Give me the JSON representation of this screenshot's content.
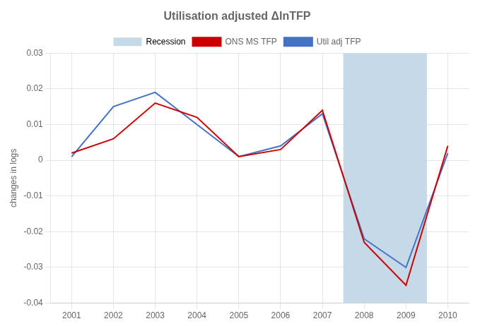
{
  "chart_data": {
    "type": "line",
    "title": "Utilisation adjusted ΔlnTFP",
    "ylabel": "changes in logs",
    "x": [
      2001,
      2002,
      2003,
      2004,
      2005,
      2006,
      2007,
      2008,
      2009,
      2010
    ],
    "series": [
      {
        "name": "ONS MS TFP",
        "color": "#cc0000",
        "values": [
          0.002,
          0.006,
          0.016,
          0.012,
          0.001,
          0.003,
          0.014,
          -0.023,
          -0.035,
          0.004
        ]
      },
      {
        "name": "Util adj TFP",
        "color": "#4472c4",
        "values": [
          0.001,
          0.015,
          0.019,
          0.01,
          0.001,
          0.004,
          0.013,
          -0.022,
          -0.03,
          0.002
        ]
      }
    ],
    "shaded_regions": [
      {
        "name": "Recession",
        "start": 2007.5,
        "end": 2009.5,
        "color": "#c5d9e8"
      }
    ],
    "xlim": [
      2000.5,
      2010.5
    ],
    "xticks": [
      2001,
      2002,
      2003,
      2004,
      2005,
      2006,
      2007,
      2008,
      2009,
      2010
    ],
    "ylim": [
      -0.04,
      0.03
    ],
    "yticks": [
      -0.04,
      -0.03,
      -0.02,
      -0.01,
      0,
      0.01,
      0.02,
      0.03
    ],
    "grid": true,
    "legend": "top"
  }
}
